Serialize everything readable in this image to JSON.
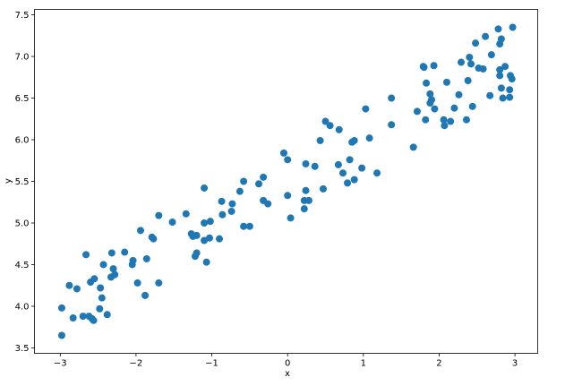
{
  "chart_data": {
    "type": "scatter",
    "title": "",
    "xlabel": "x",
    "ylabel": "y",
    "xlim": [
      -3.34,
      3.3
    ],
    "ylim": [
      3.435,
      7.565
    ],
    "xticks": [
      -3,
      -2,
      -1,
      0,
      1,
      2,
      3
    ],
    "xtick_labels": [
      "−3",
      "−2",
      "−1",
      "0",
      "1",
      "2",
      "3"
    ],
    "yticks": [
      3.5,
      4.0,
      4.5,
      5.0,
      5.5,
      6.0,
      6.5,
      7.0,
      7.5
    ],
    "ytick_labels": [
      "3.5",
      "4.0",
      "4.5",
      "5.0",
      "5.5",
      "6.0",
      "6.5",
      "7.0",
      "7.5"
    ],
    "grid": false,
    "color": "#1f77b4",
    "points": [
      [
        -2.98,
        3.98
      ],
      [
        -2.98,
        3.65
      ],
      [
        -2.88,
        4.25
      ],
      [
        -2.83,
        3.86
      ],
      [
        -2.78,
        4.21
      ],
      [
        -2.7,
        3.88
      ],
      [
        -2.66,
        4.62
      ],
      [
        -2.62,
        3.88
      ],
      [
        -2.6,
        4.29
      ],
      [
        -2.58,
        3.85
      ],
      [
        -2.56,
        3.83
      ],
      [
        -2.55,
        4.33
      ],
      [
        -2.48,
        3.97
      ],
      [
        -2.47,
        4.22
      ],
      [
        -2.45,
        4.1
      ],
      [
        -2.43,
        4.5
      ],
      [
        -2.38,
        3.9
      ],
      [
        -2.33,
        4.35
      ],
      [
        -2.32,
        4.64
      ],
      [
        -2.3,
        4.45
      ],
      [
        -2.28,
        4.38
      ],
      [
        -2.15,
        4.65
      ],
      [
        -2.05,
        4.5
      ],
      [
        -2.04,
        4.55
      ],
      [
        -1.98,
        4.28
      ],
      [
        -1.94,
        4.91
      ],
      [
        -1.88,
        4.13
      ],
      [
        -1.86,
        4.57
      ],
      [
        -1.79,
        4.83
      ],
      [
        -1.77,
        4.81
      ],
      [
        -1.7,
        5.09
      ],
      [
        -1.7,
        4.28
      ],
      [
        -1.52,
        5.01
      ],
      [
        -1.34,
        5.11
      ],
      [
        -1.27,
        4.87
      ],
      [
        -1.25,
        4.84
      ],
      [
        -1.22,
        4.6
      ],
      [
        -1.2,
        4.85
      ],
      [
        -1.2,
        4.64
      ],
      [
        -1.1,
        5.42
      ],
      [
        -1.1,
        5.0
      ],
      [
        -1.1,
        4.79
      ],
      [
        -1.07,
        4.53
      ],
      [
        -1.03,
        4.82
      ],
      [
        -1.02,
        5.02
      ],
      [
        -0.9,
        4.81
      ],
      [
        -0.87,
        5.26
      ],
      [
        -0.86,
        5.1
      ],
      [
        -0.74,
        5.14
      ],
      [
        -0.73,
        5.23
      ],
      [
        -0.63,
        5.38
      ],
      [
        -0.58,
        5.5
      ],
      [
        -0.58,
        4.96
      ],
      [
        -0.5,
        4.96
      ],
      [
        -0.38,
        5.47
      ],
      [
        -0.32,
        5.55
      ],
      [
        -0.32,
        5.27
      ],
      [
        -0.26,
        5.23
      ],
      [
        -0.05,
        5.84
      ],
      [
        0.0,
        5.76
      ],
      [
        0.0,
        5.33
      ],
      [
        0.04,
        5.06
      ],
      [
        0.22,
        5.17
      ],
      [
        0.22,
        5.27
      ],
      [
        0.24,
        5.39
      ],
      [
        0.24,
        5.71
      ],
      [
        0.28,
        5.27
      ],
      [
        0.36,
        5.68
      ],
      [
        0.43,
        5.99
      ],
      [
        0.47,
        5.41
      ],
      [
        0.5,
        6.22
      ],
      [
        0.56,
        6.17
      ],
      [
        0.67,
        5.7
      ],
      [
        0.68,
        6.12
      ],
      [
        0.73,
        5.6
      ],
      [
        0.79,
        5.48
      ],
      [
        0.82,
        5.76
      ],
      [
        0.85,
        5.97
      ],
      [
        0.88,
        5.99
      ],
      [
        0.88,
        5.52
      ],
      [
        0.98,
        5.66
      ],
      [
        1.03,
        6.37
      ],
      [
        1.08,
        6.02
      ],
      [
        1.18,
        5.6
      ],
      [
        1.37,
        6.5
      ],
      [
        1.37,
        6.18
      ],
      [
        1.66,
        5.91
      ],
      [
        1.71,
        6.34
      ],
      [
        1.79,
        6.88
      ],
      [
        1.8,
        6.87
      ],
      [
        1.82,
        6.24
      ],
      [
        1.83,
        6.68
      ],
      [
        1.88,
        6.55
      ],
      [
        1.88,
        6.44
      ],
      [
        1.9,
        6.48
      ],
      [
        1.93,
        6.89
      ],
      [
        1.94,
        6.37
      ],
      [
        2.06,
        6.24
      ],
      [
        2.07,
        6.17
      ],
      [
        2.1,
        6.69
      ],
      [
        2.15,
        6.22
      ],
      [
        2.2,
        6.38
      ],
      [
        2.26,
        6.54
      ],
      [
        2.29,
        6.93
      ],
      [
        2.36,
        6.24
      ],
      [
        2.38,
        6.71
      ],
      [
        2.4,
        6.99
      ],
      [
        2.42,
        6.91
      ],
      [
        2.44,
        6.4
      ],
      [
        2.48,
        7.16
      ],
      [
        2.52,
        6.86
      ],
      [
        2.58,
        6.85
      ],
      [
        2.61,
        7.24
      ],
      [
        2.67,
        6.53
      ],
      [
        2.69,
        7.02
      ],
      [
        2.78,
        7.33
      ],
      [
        2.8,
        7.15
      ],
      [
        2.8,
        6.84
      ],
      [
        2.8,
        6.77
      ],
      [
        2.82,
        7.21
      ],
      [
        2.82,
        6.62
      ],
      [
        2.84,
        6.5
      ],
      [
        2.87,
        6.88
      ],
      [
        2.93,
        6.51
      ],
      [
        2.93,
        6.6
      ],
      [
        2.94,
        6.77
      ],
      [
        2.96,
        6.73
      ],
      [
        2.97,
        7.35
      ]
    ]
  }
}
